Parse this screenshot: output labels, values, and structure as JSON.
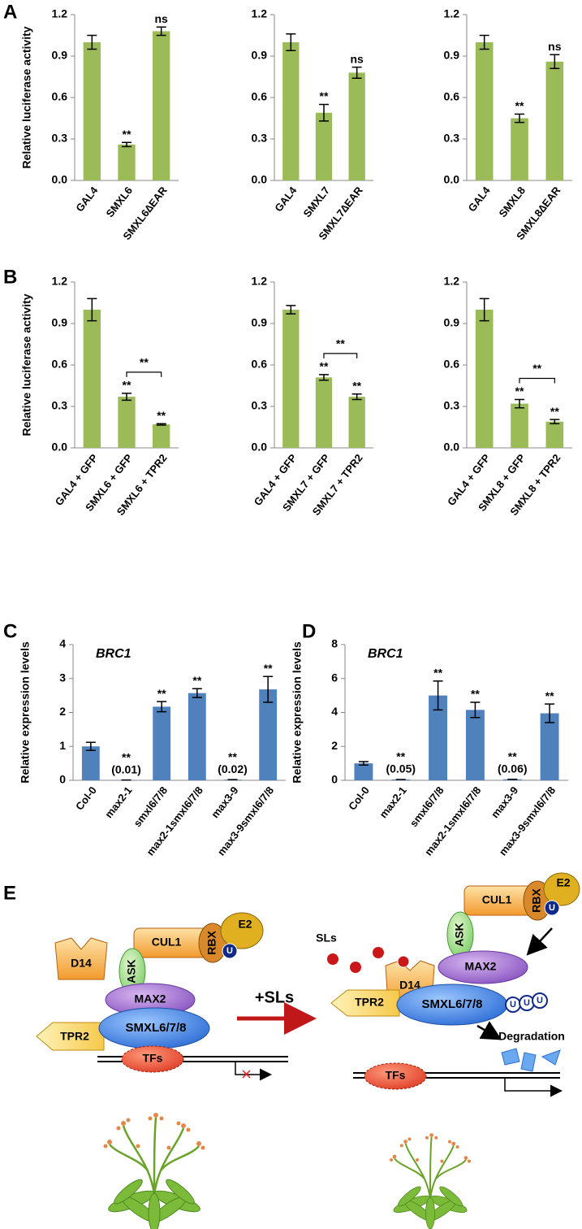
{
  "panel_labels": [
    "A",
    "B",
    "C",
    "D",
    "E"
  ],
  "chart_data": [
    {
      "type": "bar",
      "y_label": "Relative luciferase activity",
      "categories": [
        "GAL4",
        "SMXL6",
        "SMXL6∆EAR"
      ],
      "values": [
        1.0,
        0.26,
        1.08
      ],
      "errors": [
        0.05,
        0.015,
        0.03
      ],
      "annotations": [
        null,
        "**",
        "ns"
      ],
      "color": "#9bbb59",
      "ylim": [
        0,
        1.2
      ],
      "yticks": [
        {
          "value": 0,
          "label": "0.0"
        },
        0.3,
        0.6,
        0.9,
        1.2
      ]
    },
    {
      "type": "bar",
      "categories": [
        "GAL4",
        "SMXL7",
        "SMXL7∆EAR"
      ],
      "values": [
        1.0,
        0.49,
        0.78
      ],
      "errors": [
        0.06,
        0.06,
        0.04
      ],
      "annotations": [
        null,
        "**",
        "ns"
      ],
      "color": "#9bbb59",
      "ylim": [
        0,
        1.2
      ],
      "yticks": [
        {
          "value": 0,
          "label": "0.0"
        },
        0.3,
        0.6,
        0.9,
        1.2
      ]
    },
    {
      "type": "bar",
      "categories": [
        "GAL4",
        "SMXL8",
        "SMXL8∆EAR"
      ],
      "values": [
        1.0,
        0.45,
        0.86
      ],
      "errors": [
        0.05,
        0.03,
        0.05
      ],
      "annotations": [
        null,
        "**",
        "ns"
      ],
      "color": "#9bbb59",
      "ylim": [
        0,
        1.2
      ],
      "yticks": [
        {
          "value": 0,
          "label": "0.0"
        },
        0.3,
        0.6,
        0.9,
        1.2
      ]
    },
    {
      "type": "bar",
      "y_label": "Relative luciferase activity",
      "categories": [
        "GAL4 + GFP",
        "SMXL6 + GFP",
        "SMXL6 + TPR2"
      ],
      "values": [
        1.0,
        0.37,
        0.17
      ],
      "errors": [
        0.08,
        0.025,
        0.005
      ],
      "annotations": [
        null,
        "**",
        "**"
      ],
      "brackets": [
        {
          "between": [
            "SMXL6 + GFP",
            "SMXL6 + TPR2"
          ],
          "label": "**"
        }
      ],
      "color": "#9bbb59",
      "ylim": [
        0,
        1.2
      ],
      "yticks": [
        {
          "value": 0,
          "label": "0.0"
        },
        0.3,
        0.6,
        0.9,
        1.2
      ]
    },
    {
      "type": "bar",
      "categories": [
        "GAL4 + GFP",
        "SMXL7 + GFP",
        "SMXL7 + TPR2"
      ],
      "values": [
        1.0,
        0.51,
        0.37
      ],
      "errors": [
        0.03,
        0.02,
        0.02
      ],
      "annotations": [
        null,
        "**",
        "**"
      ],
      "brackets": [
        {
          "between": [
            "SMXL7 + GFP",
            "SMXL7 + TPR2"
          ],
          "label": "**"
        }
      ],
      "color": "#9bbb59",
      "ylim": [
        0,
        1.2
      ],
      "yticks": [
        {
          "value": 0,
          "label": "0.0"
        },
        0.3,
        0.6,
        0.9,
        1.2
      ]
    },
    {
      "type": "bar",
      "categories": [
        "GAL4 + GFP",
        "SMXL8 + GFP",
        "SMXL8 + TPR2"
      ],
      "values": [
        1.0,
        0.32,
        0.19
      ],
      "errors": [
        0.08,
        0.03,
        0.015
      ],
      "annotations": [
        null,
        "**",
        "**"
      ],
      "brackets": [
        {
          "between": [
            "SMXL8 + GFP",
            "SMXL8 + TPR2"
          ],
          "label": "**"
        }
      ],
      "color": "#9bbb59",
      "ylim": [
        0,
        1.2
      ],
      "yticks": [
        {
          "value": 0,
          "label": "0.0"
        },
        0.3,
        0.6,
        0.9,
        1.2
      ]
    },
    {
      "type": "bar",
      "title": "BRC1",
      "y_label": "Relative expression levels",
      "categories": [
        "Col-0",
        "max2-1",
        "smxl6/7/8",
        "max2-1smxl6/7/8",
        "max3-9",
        "max3-9smxl6/7/8"
      ],
      "values": [
        1.0,
        0.01,
        2.17,
        2.57,
        0.02,
        2.68
      ],
      "value_labels": [
        null,
        "(0.01)",
        null,
        null,
        "(0.02)",
        null
      ],
      "errors": [
        0.12,
        0,
        0.15,
        0.13,
        0,
        0.38
      ],
      "annotations": [
        null,
        "**",
        "**",
        "**",
        "**",
        "**"
      ],
      "color": "#4f81bd",
      "ylim": [
        0,
        4
      ],
      "yticks": [
        0,
        1,
        2,
        3,
        4
      ]
    },
    {
      "type": "bar",
      "title": "BRC1",
      "y_label": "Relative expression levels",
      "categories": [
        "Col-0",
        "max2-1",
        "smxl6/7/8",
        "max2-1smxl6/7/8",
        "max3-9",
        "max3-9smxl6/7/8"
      ],
      "values": [
        1.0,
        0.05,
        5.0,
        4.15,
        0.06,
        3.95
      ],
      "value_labels": [
        null,
        "(0.05)",
        null,
        null,
        "(0.06)",
        null
      ],
      "errors": [
        0.1,
        0,
        0.85,
        0.45,
        0,
        0.55
      ],
      "annotations": [
        null,
        "**",
        "**",
        "**",
        "**",
        "**"
      ],
      "color": "#4f81bd",
      "ylim": [
        0,
        8
      ],
      "yticks": [
        0,
        2,
        4,
        6,
        8
      ]
    }
  ],
  "diagram": {
    "left": {
      "d14": "D14",
      "cul1": "CUL1",
      "rbx": "RBX",
      "e2": "E2",
      "ubiquitin": "U",
      "ask": "ASK",
      "max2": "MAX2",
      "tpr2": "TPR2",
      "smxl": "SMXL6/7/8",
      "tfs": "TFs"
    },
    "treatment": "+SLs",
    "right": {
      "sls": "SLs",
      "d14": "D14",
      "cul1": "CUL1",
      "rbx": "RBX",
      "e2": "E2",
      "ubiquitin": "U",
      "ask": "ASK",
      "max2": "MAX2",
      "tpr2": "TPR2",
      "smxl": "SMXL6/7/8",
      "polyubiquitin": [
        "U",
        "U",
        "U"
      ],
      "tfs": "TFs",
      "degradation": "Degradation"
    }
  }
}
